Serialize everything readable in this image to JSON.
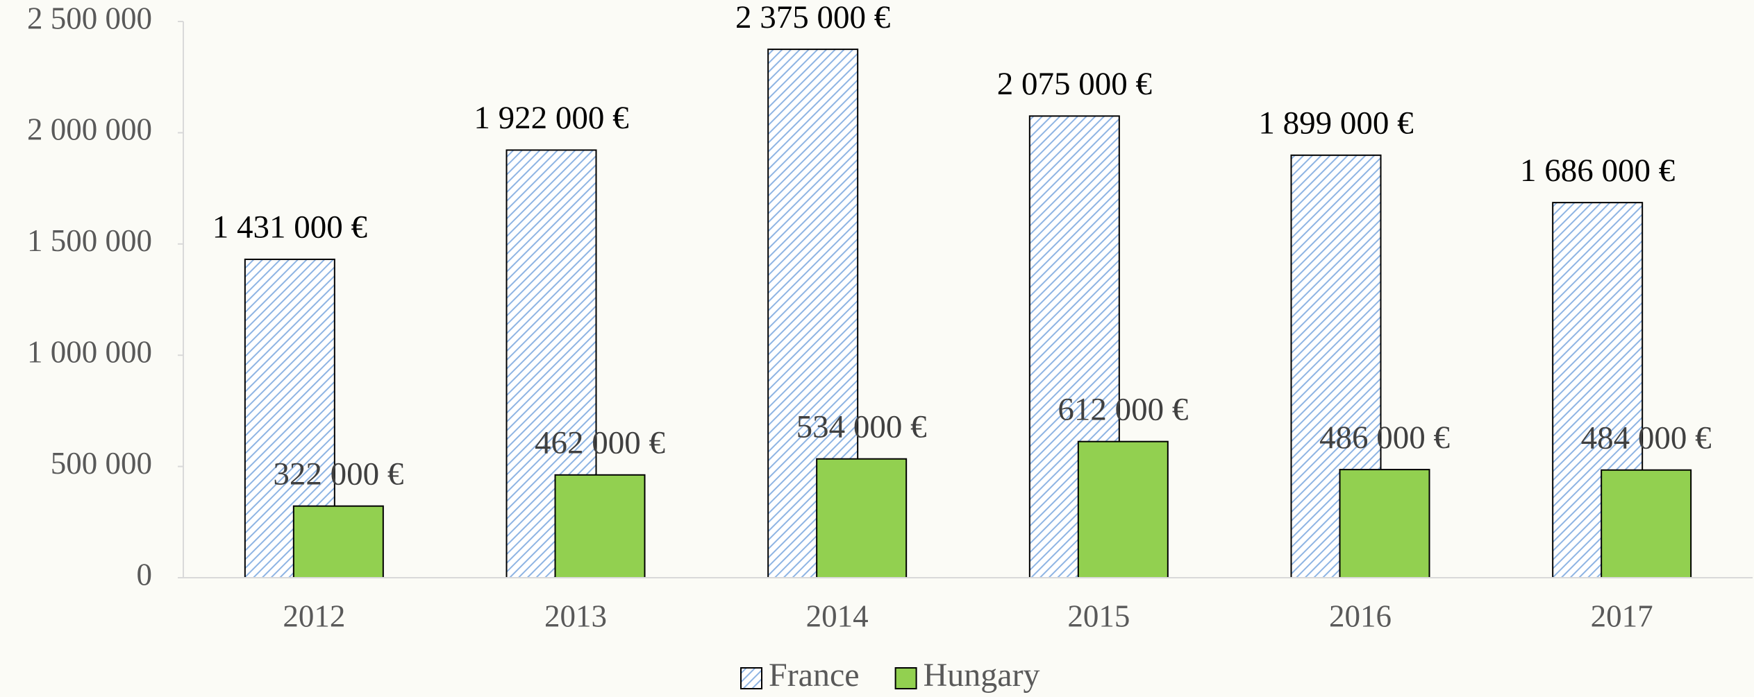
{
  "chart_data": {
    "type": "bar",
    "categories": [
      "2012",
      "2013",
      "2014",
      "2015",
      "2016",
      "2017"
    ],
    "series": [
      {
        "name": "France",
        "color": "#8eb4e3",
        "values": [
          1431000,
          1922000,
          2375000,
          2075000,
          1899000,
          1686000
        ],
        "value_labels": [
          "1 431 000 €",
          "1 922 000 €",
          "2 375 000 €",
          "2 075 000 €",
          "1 899 000 €",
          "1 686 000 €"
        ]
      },
      {
        "name": "Hungary",
        "color": "#92d050",
        "values": [
          322000,
          462000,
          534000,
          612000,
          486000,
          484000
        ],
        "value_labels": [
          "322 000 €",
          "462 000 €",
          "534 000 €",
          "612 000 €",
          "486 000 €",
          "484 000 €"
        ]
      }
    ],
    "ylim": [
      0,
      2500000
    ],
    "yticks": [
      0,
      {
        "value": 500000,
        "label": "500 000"
      },
      {
        "value": 1000000,
        "label": "1 000 000"
      },
      {
        "value": 1500000,
        "label": "1 500 000"
      },
      {
        "value": 2000000,
        "label": "2 000 000"
      },
      {
        "value": 2500000,
        "label": "2 500 000"
      }
    ],
    "legend": "bottom"
  }
}
